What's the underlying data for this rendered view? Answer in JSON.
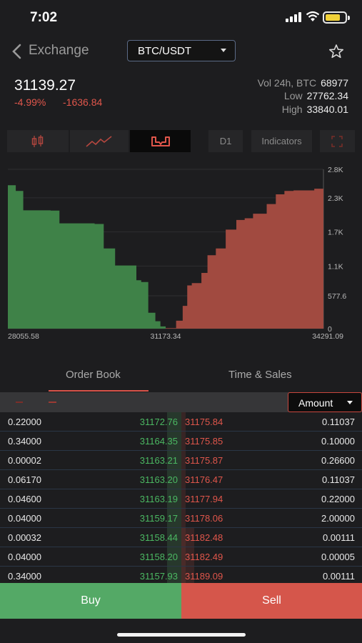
{
  "status_bar": {
    "time": "7:02"
  },
  "nav": {
    "back_label": "Exchange",
    "pair": "BTC/USDT"
  },
  "ticker": {
    "last_price": "31139.27",
    "change_pct": "-4.99%",
    "change_abs": "-1636.84",
    "vol_label": "Vol 24h, BTC",
    "vol_value": "68977",
    "low_label": "Low",
    "low_value": "27762.34",
    "high_label": "High",
    "high_value": "33840.01"
  },
  "toolbar": {
    "timeframe": "D1",
    "indicators": "Indicators",
    "active_chart": "depth"
  },
  "chart_data": {
    "type": "area",
    "title": "",
    "xlabel": "",
    "ylabel": "",
    "x_ticks": [
      "28055.58",
      "31173.34",
      "34291.09"
    ],
    "y_ticks": [
      "2.8K",
      "2.3K",
      "1.7K",
      "1.1K",
      "577.6",
      "0"
    ],
    "xlim": [
      28055.58,
      34291.09
    ],
    "ylim": [
      0,
      2800
    ],
    "series": [
      {
        "side": "bid",
        "x": [
          28055.58,
          28212,
          28360,
          28900,
          29075,
          29770,
          29950,
          30175,
          30595,
          30690,
          30830,
          30970,
          31070,
          31173.34
        ],
        "y": [
          2520,
          2420,
          2080,
          2075,
          1850,
          1840,
          1410,
          1110,
          850,
          820,
          280,
          130,
          40,
          10
        ],
        "color": "#3f8248"
      },
      {
        "side": "ask",
        "x": [
          31173.34,
          31380,
          31510,
          31600,
          31690,
          31880,
          32000,
          32165,
          32360,
          32570,
          32735,
          32900,
          33170,
          33350,
          33520,
          33700,
          34110,
          34291.09
        ],
        "y": [
          10,
          140,
          400,
          760,
          800,
          980,
          1290,
          1410,
          1740,
          1910,
          1940,
          2020,
          2190,
          2360,
          2420,
          2430,
          2460,
          2480
        ],
        "color": "#a14a40"
      }
    ]
  },
  "tabs": [
    "Order Book",
    "Time & Sales"
  ],
  "amount_select": "Amount",
  "order_book": [
    {
      "bid_amount": "0.22000",
      "bid_price": "31172.76",
      "ask_price": "31175.84",
      "ask_amount": "0.11037"
    },
    {
      "bid_amount": "0.34000",
      "bid_price": "31164.35",
      "ask_price": "31175.85",
      "ask_amount": "0.10000"
    },
    {
      "bid_amount": "0.00002",
      "bid_price": "31163.21",
      "ask_price": "31175.87",
      "ask_amount": "0.26600"
    },
    {
      "bid_amount": "0.06170",
      "bid_price": "31163.20",
      "ask_price": "31176.47",
      "ask_amount": "0.11037"
    },
    {
      "bid_amount": "0.04600",
      "bid_price": "31163.19",
      "ask_price": "31177.94",
      "ask_amount": "0.22000"
    },
    {
      "bid_amount": "0.04000",
      "bid_price": "31159.17",
      "ask_price": "31178.06",
      "ask_amount": "2.00000"
    },
    {
      "bid_amount": "0.00032",
      "bid_price": "31158.44",
      "ask_price": "31182.48",
      "ask_amount": "0.00111"
    },
    {
      "bid_amount": "0.04000",
      "bid_price": "31158.20",
      "ask_price": "31182.49",
      "ask_amount": "0.00005"
    },
    {
      "bid_amount": "0.34000",
      "bid_price": "31157.93",
      "ask_price": "31189.09",
      "ask_amount": "0.00111"
    }
  ],
  "actions": {
    "buy": "Buy",
    "sell": "Sell"
  },
  "colors": {
    "bid": "#4bb862",
    "ask": "#e0564b",
    "buy_button": "#54a966",
    "sell_button": "#d5564b"
  }
}
